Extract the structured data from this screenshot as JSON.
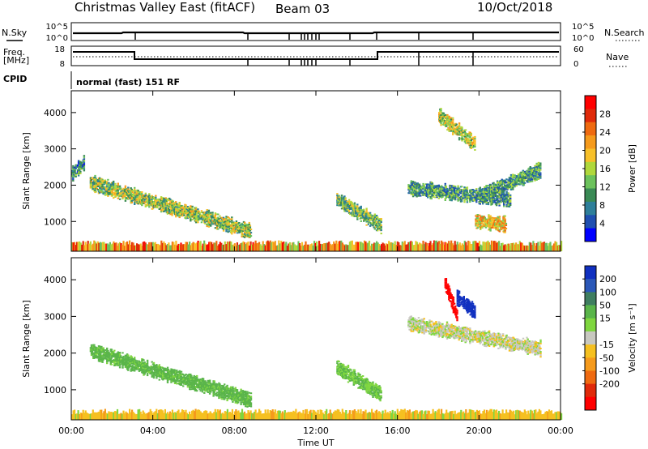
{
  "header": {
    "station": "Christmas Valley East (fitACF)",
    "beam": "Beam 03",
    "date": "10/Oct/2018"
  },
  "strips": {
    "nsky_label": "N.Sky",
    "nsky_ticks": [
      "10^5",
      "10^0"
    ],
    "nsky_right_ticks": [
      "10^5",
      "10^0"
    ],
    "nsearch_label": "N.Search",
    "freq_label_1": "Freq.",
    "freq_label_2": "[MHz]",
    "freq_ticks": [
      "18",
      "8"
    ],
    "nave_ticks": [
      "60",
      "0"
    ],
    "nave_label": "Nave",
    "cpid_label": "CPID",
    "cpid_value": "normal (fast) 151 RF"
  },
  "chart_data": [
    {
      "type": "heatmap",
      "title": "",
      "ylabel": "Slant Range [km]",
      "xlabel": "",
      "x_ticks": [
        "00:00",
        "04:00",
        "08:00",
        "12:00",
        "16:00",
        "20:00",
        "00:00"
      ],
      "y_ticks": [
        "1000",
        "2000",
        "3000",
        "4000"
      ],
      "ylim": [
        180,
        4600
      ],
      "xlim": [
        0,
        24
      ],
      "colorbar": {
        "label": "Power [dB]",
        "ticks": [
          "4",
          "8",
          "12",
          "16",
          "20",
          "24",
          "28"
        ],
        "colors": [
          "#0000ff",
          "#1f4fb0",
          "#2e7f9a",
          "#3a8a55",
          "#6cc25c",
          "#b0d83c",
          "#f7c02a",
          "#f59a1c",
          "#ef6a10",
          "#e02a0a",
          "#ff0000"
        ]
      },
      "features": [
        {
          "t_start": 0.0,
          "t_end": 0.6,
          "range_start": 2300,
          "range_end": 2600,
          "level": 0.25
        },
        {
          "t_start": 0.9,
          "t_end": 8.8,
          "range_start": 2050,
          "range_end": 700,
          "level": 0.45
        },
        {
          "t_start": 13.0,
          "t_end": 15.2,
          "range_start": 1600,
          "range_end": 850,
          "level": 0.4
        },
        {
          "t_start": 16.5,
          "t_end": 21.5,
          "range_start": 1900,
          "range_end": 1600,
          "level": 0.3
        },
        {
          "t_start": 18.0,
          "t_end": 19.8,
          "range_start": 3900,
          "range_end": 3100,
          "level": 0.5
        },
        {
          "t_start": 20.0,
          "t_end": 23.0,
          "range_start": 1700,
          "range_end": 2400,
          "level": 0.3
        },
        {
          "t_start": 19.8,
          "t_end": 21.3,
          "range_start": 1000,
          "range_end": 900,
          "level": 0.6
        }
      ]
    },
    {
      "type": "heatmap",
      "title": "",
      "ylabel": "Slant Range [km]",
      "xlabel": "Time UT",
      "x_ticks": [
        "00:00",
        "04:00",
        "08:00",
        "12:00",
        "16:00",
        "20:00",
        "00:00"
      ],
      "y_ticks": [
        "1000",
        "2000",
        "3000",
        "4000"
      ],
      "ylim": [
        180,
        4600
      ],
      "xlim": [
        0,
        24
      ],
      "colorbar": {
        "label": "Velocity [m s⁻¹]",
        "ticks": [
          "200",
          "100",
          "50",
          "15",
          "-15",
          "-50",
          "-100",
          "-200"
        ],
        "colors": [
          "#1030c0",
          "#2b58b8",
          "#3f7e60",
          "#5ab54a",
          "#7fd63f",
          "#c8c8c0",
          "#f5c020",
          "#f59a1c",
          "#ef6a10",
          "#e02a0a",
          "#ff0000"
        ]
      },
      "features": [
        {
          "t_start": 0.9,
          "t_end": 8.8,
          "range_start": 2050,
          "range_end": 700,
          "velocity": 40
        },
        {
          "t_start": 13.0,
          "t_end": 15.2,
          "range_start": 1600,
          "range_end": 850,
          "velocity": 30
        },
        {
          "t_start": 16.5,
          "t_end": 23.0,
          "range_start": 2800,
          "range_end": 2100,
          "velocity": 0
        },
        {
          "t_start": 18.3,
          "t_end": 18.9,
          "range_start": 3900,
          "range_end": 3000,
          "velocity": -200
        },
        {
          "t_start": 18.9,
          "t_end": 19.8,
          "range_start": 3500,
          "range_end": 3100,
          "velocity": 200
        }
      ]
    }
  ]
}
